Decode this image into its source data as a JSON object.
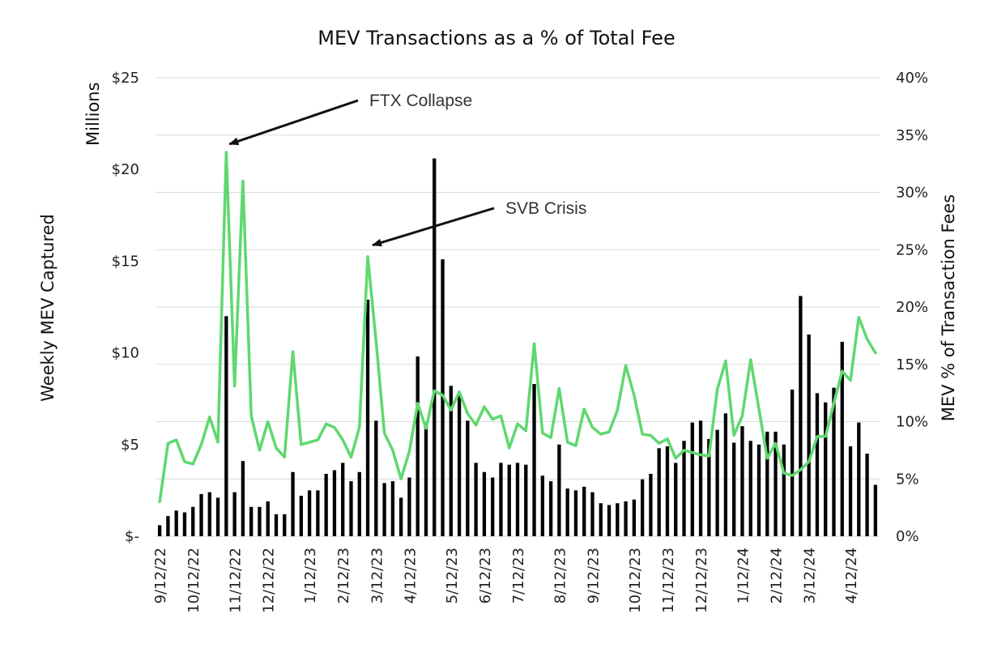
{
  "chart_data": {
    "type": "bar",
    "title": "MEV Transactions as a % of Total Fee",
    "ylabel_left": "Weekly MEV Captured",
    "ylabel_left_unit": "Millions",
    "ylabel_right": "MEV % of Transaction Fees",
    "ylim_left": [
      0,
      25
    ],
    "ylim_right": [
      0,
      40
    ],
    "yticks_left": [
      "$-",
      "$5",
      "$10",
      "$15",
      "$20",
      "$25"
    ],
    "yticks_right": [
      "0%",
      "5%",
      "10%",
      "15%",
      "20%",
      "25%",
      "30%",
      "35%",
      "40%"
    ],
    "xticks": [
      {
        "label": "9/12/22",
        "index": 0
      },
      {
        "label": "10/12/22",
        "index": 4
      },
      {
        "label": "11/12/22",
        "index": 9
      },
      {
        "label": "12/12/22",
        "index": 13
      },
      {
        "label": "1/12/23",
        "index": 18
      },
      {
        "label": "2/12/23",
        "index": 22
      },
      {
        "label": "3/12/23",
        "index": 26
      },
      {
        "label": "4/12/23",
        "index": 30
      },
      {
        "label": "5/12/23",
        "index": 35
      },
      {
        "label": "6/12/23",
        "index": 39
      },
      {
        "label": "7/12/23",
        "index": 43
      },
      {
        "label": "8/12/23",
        "index": 48
      },
      {
        "label": "9/12/23",
        "index": 52
      },
      {
        "label": "10/12/23",
        "index": 57
      },
      {
        "label": "11/12/23",
        "index": 61
      },
      {
        "label": "12/12/23",
        "index": 65
      },
      {
        "label": "1/12/24",
        "index": 70
      },
      {
        "label": "2/12/24",
        "index": 74
      },
      {
        "label": "3/12/24",
        "index": 78
      },
      {
        "label": "4/12/24",
        "index": 83
      }
    ],
    "grid": true,
    "series": [
      {
        "name": "Weekly MEV Captured",
        "kind": "bar",
        "axis": "left",
        "color": "#000000",
        "values": [
          0.6,
          1.1,
          1.4,
          1.3,
          1.6,
          2.3,
          2.4,
          2.1,
          12.0,
          2.4,
          4.1,
          1.6,
          1.6,
          1.9,
          1.2,
          1.2,
          3.5,
          2.2,
          2.5,
          2.5,
          3.4,
          3.6,
          4.0,
          3.0,
          3.5,
          12.9,
          6.3,
          2.9,
          3.0,
          2.1,
          3.2,
          9.8,
          6.2,
          20.6,
          15.1,
          8.2,
          7.8,
          6.3,
          4.0,
          3.5,
          3.2,
          4.0,
          3.9,
          4.0,
          3.9,
          8.3,
          3.3,
          3.0,
          5.0,
          2.6,
          2.5,
          2.7,
          2.4,
          1.8,
          1.7,
          1.8,
          1.9,
          2.0,
          3.1,
          3.4,
          4.8,
          4.9,
          4.0,
          5.2,
          6.2,
          6.3,
          5.3,
          5.8,
          6.7,
          5.1,
          6.0,
          5.2,
          5.0,
          5.7,
          5.7,
          5.0,
          8.0,
          13.1,
          11.0,
          7.8,
          7.3,
          8.1,
          10.6,
          4.9,
          6.2,
          4.5,
          2.8
        ]
      },
      {
        "name": "MEV % of Transaction Fees",
        "kind": "line",
        "axis": "right",
        "color": "#5fd86f",
        "values": [
          3.0,
          8.1,
          8.4,
          6.5,
          6.3,
          8.0,
          10.4,
          8.2,
          33.5,
          13.1,
          31.0,
          10.5,
          7.5,
          10.0,
          7.7,
          6.9,
          16.1,
          8.0,
          8.2,
          8.4,
          9.8,
          9.5,
          8.4,
          6.9,
          9.5,
          24.4,
          17.0,
          9.0,
          7.5,
          5.0,
          7.4,
          11.6,
          9.4,
          12.7,
          12.3,
          11.0,
          12.6,
          10.7,
          9.7,
          11.3,
          10.2,
          10.5,
          7.7,
          9.8,
          9.2,
          16.8,
          9.0,
          8.6,
          12.9,
          8.2,
          7.9,
          11.1,
          9.5,
          8.9,
          9.1,
          11.0,
          14.9,
          12.3,
          8.9,
          8.8,
          8.1,
          8.5,
          6.8,
          7.5,
          7.3,
          7.1,
          7.0,
          12.8,
          15.3,
          8.8,
          10.5,
          15.4,
          11.1,
          6.8,
          8.1,
          5.5,
          5.3,
          5.8,
          6.5,
          8.7,
          8.7,
          11.6,
          14.4,
          13.6,
          19.1,
          17.2,
          16.0
        ]
      }
    ],
    "annotations": [
      {
        "text": "FTX Collapse",
        "target_index": 8
      },
      {
        "text": "SVB Crisis",
        "target_index": 25
      }
    ]
  }
}
